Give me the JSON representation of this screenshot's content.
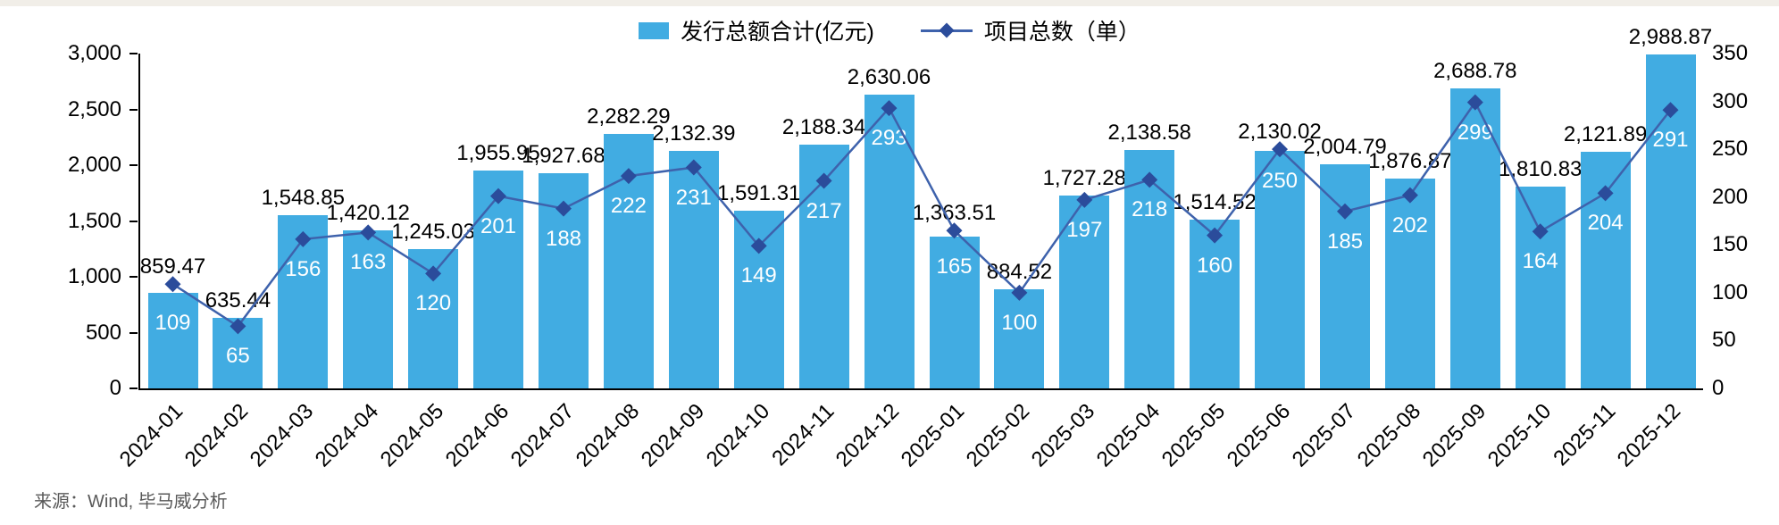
{
  "legend": {
    "bar_label": "发行总额合计(亿元)",
    "line_label": "项目总数（单）"
  },
  "footer": {
    "source": "来源：Wind, 毕马威分析"
  },
  "colors": {
    "bar": "#41ACE2",
    "line": "#3E62AC",
    "marker": "#2B4C9B",
    "value_label": "#000000",
    "count_label": "#FFFFFF",
    "axis": "#000000",
    "source_text": "#595959"
  },
  "chart_data": {
    "type": "bar",
    "subtype": "bar-line-combo",
    "title": "",
    "categories": [
      "2024-01",
      "2024-02",
      "2024-03",
      "2024-04",
      "2024-05",
      "2024-06",
      "2024-07",
      "2024-08",
      "2024-09",
      "2024-10",
      "2024-11",
      "2024-12",
      "2025-01",
      "2025-02",
      "2025-03",
      "2025-04",
      "2025-05",
      "2025-06",
      "2025-07",
      "2025-08",
      "2025-09",
      "2025-10",
      "2025-11",
      "2025-12"
    ],
    "series": [
      {
        "name": "发行总额合计(亿元)",
        "type": "bar",
        "axis": "left",
        "values": [
          859.47,
          635.44,
          1548.85,
          1420.12,
          1245.03,
          1955.95,
          1927.68,
          2282.29,
          2132.39,
          1591.31,
          2188.34,
          2630.06,
          1363.51,
          884.52,
          1727.28,
          2138.58,
          1514.52,
          2130.02,
          2004.79,
          1876.87,
          2688.78,
          1810.83,
          2121.89,
          2988.87
        ]
      },
      {
        "name": "项目总数（单）",
        "type": "line",
        "axis": "right",
        "values": [
          109,
          65,
          156,
          163,
          120,
          201,
          188,
          222,
          231,
          149,
          217,
          293,
          165,
          100,
          197,
          218,
          160,
          250,
          185,
          202,
          299,
          164,
          204,
          291
        ]
      }
    ],
    "left_axis": {
      "min": 0,
      "max": 3000,
      "step": 500,
      "ticks": [
        "0",
        "500",
        "1,000",
        "1,500",
        "2,000",
        "2,500",
        "3,000"
      ]
    },
    "right_axis": {
      "min": 0,
      "max": 350,
      "step": 50,
      "ticks": [
        "0",
        "50",
        "100",
        "150",
        "200",
        "250",
        "300",
        "350"
      ]
    },
    "grid": false,
    "legend_position": "top-center",
    "xlabel": "",
    "ylabel_left": "发行总额合计(亿元)",
    "ylabel_right": "项目总数（单）"
  }
}
